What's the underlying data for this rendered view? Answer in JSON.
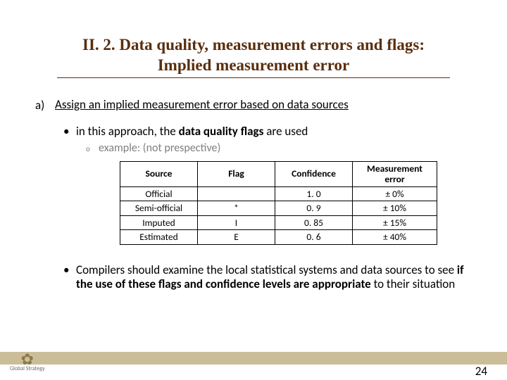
{
  "title_line1": "II. 2. Data quality, measurement errors and flags:",
  "title_line2": "Implied measurement error",
  "item_a_marker": "a)",
  "item_a_text": "Assign an implied measurement error based on data sources",
  "bullet1_pre": "in this approach, the ",
  "bullet1_bold": "data quality flags",
  "bullet1_post": " are used",
  "bullet2_text": "example: (not prespective)",
  "table": {
    "headers": [
      "Source",
      "Flag",
      "Confidence",
      "Measurement error"
    ],
    "rows": [
      [
        "Official",
        "",
        "1. 0",
        "± 0%"
      ],
      [
        "Semi-official",
        "*",
        "0. 9",
        "± 10%"
      ],
      [
        "Imputed",
        "I",
        "0. 85",
        "± 15%"
      ],
      [
        "Estimated",
        "E",
        "0. 6",
        "± 40%"
      ]
    ]
  },
  "compilers_pre": "Compilers should examine the local statistical systems and data sources to see ",
  "compilers_bold": "if the use of these flags and confidence levels are appropriate ",
  "compilers_post": "to their situation",
  "logo_text": "Global Strategy",
  "page_number": "24"
}
